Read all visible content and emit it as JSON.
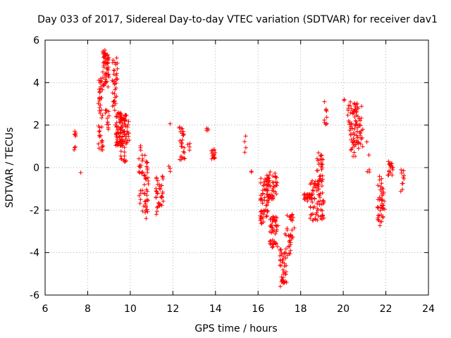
{
  "chart_data": {
    "type": "scatter",
    "title": "Day 033 of 2017, Sidereal Day-to-day VTEC variation (SDTVAR) for receiver dav1",
    "xlabel": "GPS time / hours",
    "ylabel": "SDTVAR / TECUs",
    "xlim": [
      6,
      24
    ],
    "ylim": [
      -6,
      6
    ],
    "xticks": [
      6,
      8,
      10,
      12,
      14,
      16,
      18,
      20,
      22,
      24
    ],
    "yticks": [
      -6,
      -4,
      -2,
      0,
      2,
      4,
      6
    ],
    "grid": true,
    "marker": "+",
    "color": "#ff0000",
    "clusters": [
      {
        "x0": 7.35,
        "x1": 7.45,
        "ymin": 0.7,
        "ymax": 1.9,
        "n": 8
      },
      {
        "x0": 7.65,
        "x1": 7.7,
        "ymin": -0.25,
        "ymax": -0.15,
        "n": 1
      },
      {
        "x0": 8.5,
        "x1": 8.75,
        "ymin": 0.5,
        "ymax": 4.2,
        "n": 45
      },
      {
        "x0": 8.7,
        "x1": 9.0,
        "ymin": 3.8,
        "ymax": 5.6,
        "n": 55
      },
      {
        "x0": 8.8,
        "x1": 9.05,
        "ymin": 1.8,
        "ymax": 3.0,
        "n": 12
      },
      {
        "x0": 9.15,
        "x1": 9.4,
        "ymin": 2.5,
        "ymax": 5.2,
        "n": 35
      },
      {
        "x0": 9.3,
        "x1": 9.65,
        "ymin": 1.0,
        "ymax": 2.6,
        "n": 55
      },
      {
        "x0": 9.5,
        "x1": 9.95,
        "ymin": 1.1,
        "ymax": 2.5,
        "n": 60
      },
      {
        "x0": 9.55,
        "x1": 9.8,
        "ymin": 0.2,
        "ymax": 1.0,
        "n": 12
      },
      {
        "x0": 10.4,
        "x1": 10.85,
        "ymin": -2.4,
        "ymax": 0.6,
        "n": 55
      },
      {
        "x0": 10.45,
        "x1": 10.6,
        "ymin": 0.8,
        "ymax": 1.2,
        "n": 3
      },
      {
        "x0": 11.2,
        "x1": 11.55,
        "ymin": -1.9,
        "ymax": -0.3,
        "n": 35
      },
      {
        "x0": 11.2,
        "x1": 11.3,
        "ymin": -2.3,
        "ymax": -2.0,
        "n": 2
      },
      {
        "x0": 11.8,
        "x1": 11.9,
        "ymin": -0.35,
        "ymax": 0.25,
        "n": 3
      },
      {
        "x0": 11.85,
        "x1": 11.95,
        "ymin": 2.0,
        "ymax": 2.1,
        "n": 1
      },
      {
        "x0": 12.3,
        "x1": 12.55,
        "ymin": 0.3,
        "ymax": 2.1,
        "n": 25
      },
      {
        "x0": 12.7,
        "x1": 12.8,
        "ymin": 0.8,
        "ymax": 1.5,
        "n": 4
      },
      {
        "x0": 13.55,
        "x1": 13.65,
        "ymin": 1.7,
        "ymax": 1.85,
        "n": 4
      },
      {
        "x0": 13.8,
        "x1": 14.0,
        "ymin": 0.4,
        "ymax": 0.9,
        "n": 15
      },
      {
        "x0": 15.35,
        "x1": 15.45,
        "ymin": 0.7,
        "ymax": 1.5,
        "n": 4
      },
      {
        "x0": 15.65,
        "x1": 15.75,
        "ymin": -0.25,
        "ymax": -0.15,
        "n": 2
      },
      {
        "x0": 16.1,
        "x1": 16.5,
        "ymin": -2.7,
        "ymax": -0.5,
        "n": 55
      },
      {
        "x0": 16.4,
        "x1": 16.9,
        "ymin": -1.5,
        "ymax": -0.2,
        "n": 50
      },
      {
        "x0": 16.55,
        "x1": 16.95,
        "ymin": -3.8,
        "ymax": -2.2,
        "n": 45
      },
      {
        "x0": 17.0,
        "x1": 17.35,
        "ymin": -5.6,
        "ymax": -3.8,
        "n": 40
      },
      {
        "x0": 17.2,
        "x1": 17.7,
        "ymin": -4.3,
        "ymax": -2.8,
        "n": 25
      },
      {
        "x0": 17.3,
        "x1": 17.65,
        "ymin": -2.5,
        "ymax": -2.2,
        "n": 10
      },
      {
        "x0": 18.1,
        "x1": 18.55,
        "ymin": -1.6,
        "ymax": -1.1,
        "n": 20
      },
      {
        "x0": 18.4,
        "x1": 19.1,
        "ymin": -2.5,
        "ymax": -0.6,
        "n": 75
      },
      {
        "x0": 18.75,
        "x1": 19.05,
        "ymin": -0.7,
        "ymax": 0.7,
        "n": 25
      },
      {
        "x0": 19.1,
        "x1": 19.25,
        "ymin": 2.0,
        "ymax": 3.1,
        "n": 10
      },
      {
        "x0": 19.95,
        "x1": 20.05,
        "ymin": 2.8,
        "ymax": 3.35,
        "n": 2
      },
      {
        "x0": 20.2,
        "x1": 20.65,
        "ymin": 1.4,
        "ymax": 3.1,
        "n": 45
      },
      {
        "x0": 20.35,
        "x1": 20.6,
        "ymin": 0.5,
        "ymax": 1.4,
        "n": 15
      },
      {
        "x0": 20.6,
        "x1": 20.95,
        "ymin": 0.8,
        "ymax": 2.9,
        "n": 30
      },
      {
        "x0": 21.1,
        "x1": 21.25,
        "ymin": -0.3,
        "ymax": 1.5,
        "n": 5
      },
      {
        "x0": 21.6,
        "x1": 21.95,
        "ymin": -2.8,
        "ymax": -0.4,
        "n": 45
      },
      {
        "x0": 22.1,
        "x1": 22.35,
        "ymin": -0.4,
        "ymax": 0.3,
        "n": 20
      },
      {
        "x0": 22.7,
        "x1": 22.85,
        "ymin": -1.3,
        "ymax": 0.15,
        "n": 10
      }
    ]
  }
}
